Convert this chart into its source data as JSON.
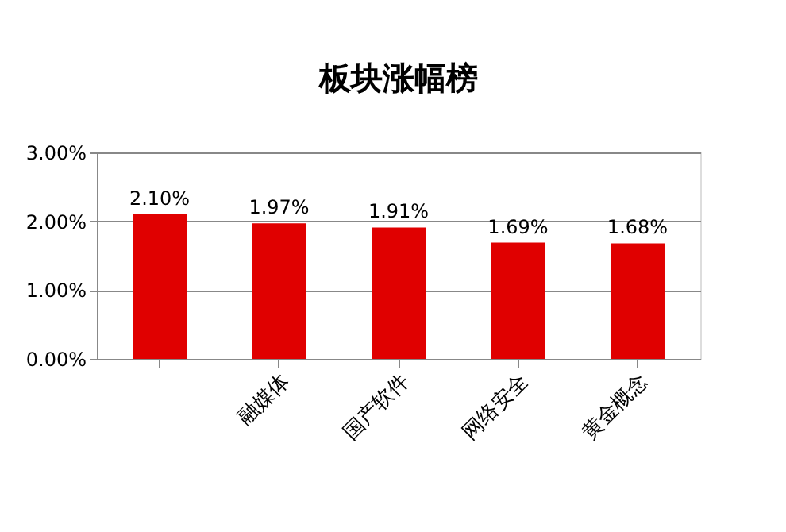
{
  "chart_data": {
    "type": "bar",
    "title": "板块涨幅榜",
    "categories": [
      null,
      "融媒体",
      "国产软件",
      "网络安全",
      "黄金概念"
    ],
    "values": [
      2.1,
      1.97,
      1.91,
      1.69,
      1.68
    ],
    "value_labels": [
      "2.10%",
      "1.97%",
      "1.91%",
      "1.69%",
      "1.68%"
    ],
    "color": "#e00000",
    "ylim": [
      0,
      3
    ],
    "yticks": [
      {
        "value": 0,
        "label": "0.00%"
      },
      {
        "value": 1,
        "label": "1.00%"
      },
      {
        "value": 2,
        "label": "2.00%"
      },
      {
        "value": 3,
        "label": "3.00%"
      }
    ],
    "grid": "y"
  }
}
